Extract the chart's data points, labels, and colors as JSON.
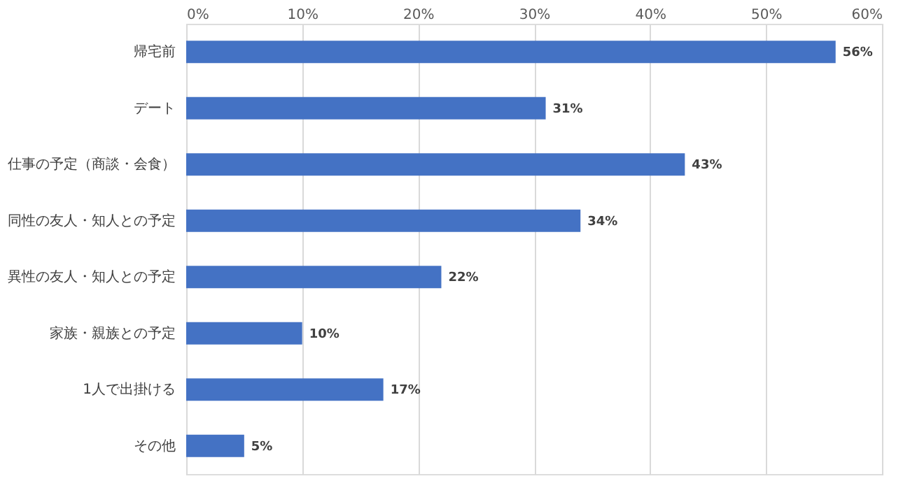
{
  "chart_data": {
    "type": "bar",
    "orientation": "horizontal",
    "categories": [
      "帰宅前",
      "デート",
      "仕事の予定（商談・会食）",
      "同性の友人・知人との予定",
      "異性の友人・知人との予定",
      "家族・親族との予定",
      "1人で出掛ける",
      "その他"
    ],
    "values": [
      56,
      31,
      43,
      34,
      22,
      10,
      17,
      5
    ],
    "value_labels": [
      "56%",
      "31%",
      "43%",
      "34%",
      "22%",
      "10%",
      "17%",
      "5%"
    ],
    "color": "#4472c4",
    "xlim": [
      0,
      60
    ],
    "xticks": [
      {
        "value": 0,
        "label": "0%"
      },
      {
        "value": 10,
        "label": "10%"
      },
      {
        "value": 20,
        "label": "20%"
      },
      {
        "value": 30,
        "label": "30%"
      },
      {
        "value": 40,
        "label": "40%"
      },
      {
        "value": 50,
        "label": "50%"
      },
      {
        "value": 60,
        "label": "60%"
      }
    ],
    "grid": "x"
  }
}
